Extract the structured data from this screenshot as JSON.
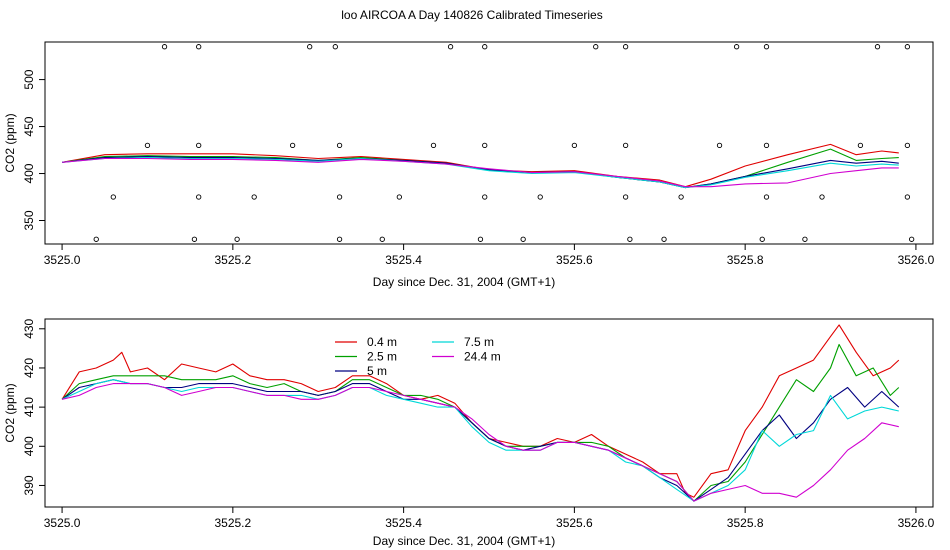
{
  "title": "loo AIRCOA A  Day 140826  Calibrated Timeseries",
  "colors": {
    "0.4 m": "#e00000",
    "2.5 m": "#00a000",
    "5 m": "#000080",
    "7.5 m": "#00d8d8",
    "24.4 m": "#d000d0",
    "axis": "#000000",
    "background": "#ffffff"
  },
  "chart_data": [
    {
      "type": "line",
      "title": "",
      "xlabel": "Day since Dec. 31, 2004 (GMT+1)",
      "ylabel": "CO2 (ppm)",
      "xlim": [
        3524.98,
        3526.02
      ],
      "ylim": [
        325,
        540
      ],
      "xticks": [
        3525.0,
        3525.2,
        3525.4,
        3525.6,
        3525.8,
        3526.0
      ],
      "xtick_labels": [
        "3525.0",
        "3525.2",
        "3525.4",
        "3525.6",
        "3525.8",
        "3526.0"
      ],
      "yticks": [
        350,
        400,
        450,
        500
      ],
      "ytick_labels": [
        "350",
        "400",
        "450",
        "500"
      ],
      "grid": false,
      "series": [
        {
          "name": "0.4 m",
          "x": [
            3525.0,
            3525.05,
            3525.1,
            3525.15,
            3525.2,
            3525.25,
            3525.3,
            3525.35,
            3525.4,
            3525.45,
            3525.5,
            3525.55,
            3525.6,
            3525.65,
            3525.7,
            3525.73,
            3525.76,
            3525.8,
            3525.85,
            3525.9,
            3525.93,
            3525.96,
            3525.98
          ],
          "y": [
            412,
            420,
            421,
            421,
            421,
            419,
            416,
            418,
            415,
            412,
            404,
            402,
            403,
            397,
            393,
            386,
            394,
            408,
            420,
            431,
            420,
            424,
            422
          ]
        },
        {
          "name": "2.5 m",
          "x": [
            3525.0,
            3525.05,
            3525.1,
            3525.15,
            3525.2,
            3525.25,
            3525.3,
            3525.35,
            3525.4,
            3525.45,
            3525.5,
            3525.55,
            3525.6,
            3525.65,
            3525.7,
            3525.73,
            3525.76,
            3525.8,
            3525.85,
            3525.9,
            3525.93,
            3525.96,
            3525.98
          ],
          "y": [
            412,
            418,
            419,
            418,
            418,
            417,
            414,
            417,
            414,
            411,
            404,
            401,
            402,
            396,
            391,
            385,
            389,
            397,
            412,
            426,
            414,
            416,
            417
          ]
        },
        {
          "name": "5 m",
          "x": [
            3525.0,
            3525.05,
            3525.1,
            3525.15,
            3525.2,
            3525.25,
            3525.3,
            3525.35,
            3525.4,
            3525.45,
            3525.5,
            3525.55,
            3525.6,
            3525.65,
            3525.7,
            3525.73,
            3525.76,
            3525.8,
            3525.85,
            3525.9,
            3525.93,
            3525.96,
            3525.98
          ],
          "y": [
            412,
            417,
            418,
            417,
            417,
            416,
            414,
            416,
            414,
            411,
            404,
            401,
            402,
            396,
            391,
            385,
            389,
            397,
            405,
            414,
            411,
            413,
            411
          ]
        },
        {
          "name": "7.5 m",
          "x": [
            3525.0,
            3525.05,
            3525.1,
            3525.15,
            3525.2,
            3525.25,
            3525.3,
            3525.35,
            3525.4,
            3525.45,
            3525.5,
            3525.55,
            3525.6,
            3525.65,
            3525.7,
            3525.73,
            3525.76,
            3525.8,
            3525.85,
            3525.9,
            3525.93,
            3525.96,
            3525.98
          ],
          "y": [
            412,
            416,
            417,
            416,
            416,
            415,
            413,
            416,
            413,
            410,
            403,
            400,
            401,
            396,
            391,
            385,
            388,
            396,
            403,
            411,
            408,
            410,
            409
          ]
        },
        {
          "name": "24.4 m",
          "x": [
            3525.0,
            3525.05,
            3525.1,
            3525.15,
            3525.2,
            3525.25,
            3525.3,
            3525.35,
            3525.4,
            3525.45,
            3525.5,
            3525.55,
            3525.6,
            3525.65,
            3525.7,
            3525.73,
            3525.76,
            3525.8,
            3525.85,
            3525.9,
            3525.93,
            3525.96,
            3525.98
          ],
          "y": [
            412,
            416,
            416,
            415,
            415,
            414,
            412,
            415,
            413,
            410,
            405,
            401,
            402,
            397,
            392,
            386,
            386,
            389,
            390,
            400,
            403,
            406,
            406
          ]
        }
      ],
      "circle_markers": [
        {
          "x": [
            3525.12,
            3525.16,
            3525.29,
            3525.32,
            3525.455,
            3525.495,
            3525.625,
            3525.66,
            3525.79,
            3525.825,
            3525.955,
            3525.99
          ],
          "y": 535
        },
        {
          "x": [
            3525.1,
            3525.16,
            3525.27,
            3525.325,
            3525.435,
            3525.495,
            3525.6,
            3525.66,
            3525.77,
            3525.825,
            3525.935,
            3525.99
          ],
          "y": 430
        },
        {
          "x": [
            3525.06,
            3525.16,
            3525.225,
            3525.325,
            3525.395,
            3525.495,
            3525.56,
            3525.66,
            3525.725,
            3525.825,
            3525.89,
            3525.99
          ],
          "y": 375
        },
        {
          "x": [
            3525.04,
            3525.155,
            3525.205,
            3525.325,
            3525.375,
            3525.49,
            3525.54,
            3525.665,
            3525.705,
            3525.82,
            3525.87,
            3525.995
          ],
          "y": 330
        }
      ]
    },
    {
      "type": "line",
      "title": "",
      "xlabel": "Day since Dec. 31, 2004 (GMT+1)",
      "ylabel": "CO2 (ppm)",
      "xlim": [
        3524.98,
        3526.02
      ],
      "ylim": [
        384.5,
        432.5
      ],
      "xticks": [
        3525.0,
        3525.2,
        3525.4,
        3525.6,
        3525.8,
        3526.0
      ],
      "xtick_labels": [
        "3525.0",
        "3525.2",
        "3525.4",
        "3525.6",
        "3525.8",
        "3526.0"
      ],
      "yticks": [
        390,
        400,
        410,
        420,
        430
      ],
      "ytick_labels": [
        "390",
        "400",
        "410",
        "420",
        "430"
      ],
      "grid": false,
      "legend": {
        "placement": "top-left inside",
        "entries": [
          "0.4 m",
          "2.5 m",
          "5 m",
          "7.5 m",
          "24.4 m"
        ]
      },
      "series": [
        {
          "name": "0.4 m",
          "x": [
            3525.0,
            3525.02,
            3525.04,
            3525.06,
            3525.07,
            3525.08,
            3525.1,
            3525.12,
            3525.14,
            3525.16,
            3525.18,
            3525.2,
            3525.22,
            3525.24,
            3525.26,
            3525.28,
            3525.3,
            3525.32,
            3525.34,
            3525.36,
            3525.38,
            3525.4,
            3525.42,
            3525.44,
            3525.46,
            3525.48,
            3525.5,
            3525.52,
            3525.54,
            3525.56,
            3525.58,
            3525.6,
            3525.62,
            3525.64,
            3525.66,
            3525.68,
            3525.7,
            3525.72,
            3525.73,
            3525.74,
            3525.76,
            3525.78,
            3525.8,
            3525.82,
            3525.84,
            3525.86,
            3525.88,
            3525.9,
            3525.91,
            3525.93,
            3525.95,
            3525.97,
            3525.98
          ],
          "y": [
            412,
            419,
            420,
            422,
            424,
            419,
            420,
            417,
            421,
            420,
            419,
            421,
            418,
            417,
            417,
            416,
            414,
            415,
            418,
            418,
            416,
            413,
            412,
            413,
            411,
            406,
            402,
            401,
            400,
            400,
            402,
            401,
            403,
            400,
            398,
            396,
            393,
            393,
            388,
            387,
            393,
            394,
            404,
            410,
            418,
            420,
            422,
            428,
            431,
            424,
            418,
            420,
            422
          ]
        },
        {
          "name": "2.5 m",
          "x": [
            3525.0,
            3525.02,
            3525.04,
            3525.06,
            3525.08,
            3525.1,
            3525.12,
            3525.14,
            3525.16,
            3525.18,
            3525.2,
            3525.22,
            3525.24,
            3525.26,
            3525.28,
            3525.3,
            3525.32,
            3525.34,
            3525.36,
            3525.38,
            3525.4,
            3525.42,
            3525.44,
            3525.46,
            3525.48,
            3525.5,
            3525.52,
            3525.54,
            3525.56,
            3525.58,
            3525.6,
            3525.62,
            3525.64,
            3525.66,
            3525.68,
            3525.7,
            3525.72,
            3525.74,
            3525.76,
            3525.78,
            3525.8,
            3525.82,
            3525.84,
            3525.86,
            3525.88,
            3525.9,
            3525.91,
            3525.93,
            3525.95,
            3525.97,
            3525.98
          ],
          "y": [
            412,
            416,
            417,
            418,
            418,
            418,
            418,
            417,
            417,
            417,
            418,
            416,
            415,
            416,
            414,
            413,
            414,
            417,
            417,
            415,
            413,
            413,
            412,
            410,
            406,
            402,
            400,
            400,
            400,
            401,
            401,
            401,
            400,
            397,
            395,
            393,
            391,
            386,
            390,
            391,
            396,
            403,
            410,
            417,
            414,
            420,
            426,
            418,
            420,
            413,
            415
          ]
        },
        {
          "name": "5 m",
          "x": [
            3525.0,
            3525.02,
            3525.04,
            3525.06,
            3525.08,
            3525.1,
            3525.12,
            3525.14,
            3525.16,
            3525.18,
            3525.2,
            3525.22,
            3525.24,
            3525.26,
            3525.28,
            3525.3,
            3525.32,
            3525.34,
            3525.36,
            3525.38,
            3525.4,
            3525.42,
            3525.44,
            3525.46,
            3525.48,
            3525.5,
            3525.52,
            3525.54,
            3525.56,
            3525.58,
            3525.6,
            3525.62,
            3525.64,
            3525.66,
            3525.68,
            3525.7,
            3525.72,
            3525.74,
            3525.76,
            3525.78,
            3525.8,
            3525.82,
            3525.84,
            3525.86,
            3525.88,
            3525.9,
            3525.92,
            3525.94,
            3525.96,
            3525.98
          ],
          "y": [
            412,
            415,
            416,
            417,
            416,
            416,
            415,
            415,
            416,
            416,
            416,
            415,
            414,
            414,
            414,
            413,
            414,
            416,
            416,
            414,
            412,
            412,
            411,
            410,
            406,
            402,
            400,
            399,
            400,
            401,
            401,
            400,
            399,
            397,
            395,
            392,
            390,
            386,
            389,
            392,
            398,
            404,
            408,
            402,
            406,
            412,
            415,
            410,
            414,
            410
          ]
        },
        {
          "name": "7.5 m",
          "x": [
            3525.0,
            3525.02,
            3525.04,
            3525.06,
            3525.08,
            3525.1,
            3525.12,
            3525.14,
            3525.16,
            3525.18,
            3525.2,
            3525.22,
            3525.24,
            3525.26,
            3525.28,
            3525.3,
            3525.32,
            3525.34,
            3525.36,
            3525.38,
            3525.4,
            3525.42,
            3525.44,
            3525.46,
            3525.48,
            3525.5,
            3525.52,
            3525.54,
            3525.56,
            3525.58,
            3525.6,
            3525.62,
            3525.64,
            3525.66,
            3525.68,
            3525.7,
            3525.72,
            3525.74,
            3525.76,
            3525.78,
            3525.8,
            3525.82,
            3525.84,
            3525.86,
            3525.88,
            3525.9,
            3525.92,
            3525.94,
            3525.96,
            3525.98
          ],
          "y": [
            412,
            414,
            416,
            417,
            416,
            416,
            415,
            414,
            415,
            415,
            415,
            414,
            413,
            413,
            413,
            412,
            413,
            415,
            415,
            413,
            412,
            411,
            410,
            410,
            405,
            401,
            399,
            399,
            399,
            401,
            401,
            400,
            399,
            396,
            395,
            392,
            389,
            386,
            388,
            390,
            394,
            404,
            400,
            403,
            404,
            413,
            407,
            409,
            410,
            409
          ]
        },
        {
          "name": "24.4 m",
          "x": [
            3525.0,
            3525.02,
            3525.04,
            3525.06,
            3525.08,
            3525.1,
            3525.12,
            3525.14,
            3525.16,
            3525.18,
            3525.2,
            3525.22,
            3525.24,
            3525.26,
            3525.28,
            3525.3,
            3525.32,
            3525.34,
            3525.36,
            3525.38,
            3525.4,
            3525.42,
            3525.44,
            3525.46,
            3525.48,
            3525.5,
            3525.52,
            3525.54,
            3525.56,
            3525.58,
            3525.6,
            3525.62,
            3525.64,
            3525.66,
            3525.68,
            3525.7,
            3525.72,
            3525.74,
            3525.76,
            3525.78,
            3525.8,
            3525.82,
            3525.84,
            3525.86,
            3525.88,
            3525.9,
            3525.92,
            3525.94,
            3525.96,
            3525.98
          ],
          "y": [
            412,
            413,
            415,
            416,
            416,
            416,
            415,
            413,
            414,
            415,
            415,
            414,
            413,
            413,
            412,
            412,
            413,
            415,
            415,
            414,
            413,
            412,
            411,
            410,
            407,
            403,
            400,
            399,
            399,
            401,
            401,
            400,
            399,
            397,
            395,
            393,
            391,
            386,
            388,
            389,
            390,
            388,
            388,
            387,
            390,
            394,
            399,
            402,
            406,
            405
          ]
        }
      ]
    }
  ]
}
